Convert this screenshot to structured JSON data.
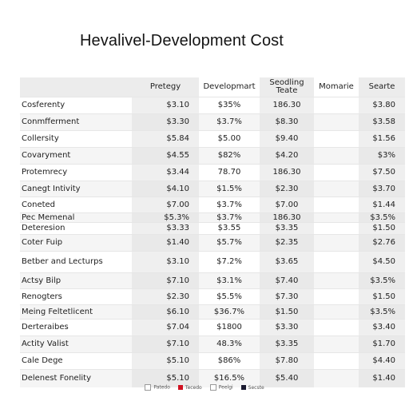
{
  "title": "Hevalivel-Development Cost",
  "table": {
    "headers": [
      "",
      "Pretegy",
      "Developmart",
      "Seodling Teate",
      "Momarie",
      "Searte"
    ],
    "rows": [
      {
        "label": "Cosferenty",
        "cells": [
          "$3.10",
          "$35%",
          "186.30",
          "",
          "$3.80"
        ]
      },
      {
        "label": "Conmfferment",
        "cells": [
          "$3.30",
          "$3.7%",
          "$8.30",
          "",
          "$3.58"
        ]
      },
      {
        "label": "Collersity",
        "cells": [
          "$5.84",
          "$5.00",
          "$9.40",
          "",
          "$1.56"
        ]
      },
      {
        "label": "Covaryment",
        "cells": [
          "$4.55",
          "$82%",
          "$4.20",
          "",
          "$3%"
        ]
      },
      {
        "label": "Protemrecy",
        "cells": [
          "$3.44",
          "78.70",
          "186.30",
          "",
          "$7.50"
        ]
      },
      {
        "label": "Canegt Intivity",
        "cells": [
          "$4.10",
          "$1.5%",
          "$2.30",
          "",
          "$3.70"
        ]
      },
      {
        "label": "Coneted",
        "cells": [
          "$7.00",
          "$3.7%",
          "$7.00",
          "",
          "$1.44"
        ]
      },
      {
        "label": "Pec Memenal",
        "cells": [
          "$5.3%",
          "$3.7%",
          "186.30",
          "",
          "$3.5%"
        ]
      },
      {
        "label": "Deteresion",
        "cells": [
          "$3.33",
          "$3.55",
          "$3.35",
          "",
          "$1.50"
        ]
      },
      {
        "label": "Coter Fuip",
        "cells": [
          "$1.40",
          "$5.7%",
          "$2.35",
          "",
          "$2.76"
        ]
      },
      {
        "label": "Betber and Lecturps",
        "cells": [
          "$3.10",
          "$7.2%",
          "$3.65",
          "",
          "$4.50"
        ]
      },
      {
        "label": "Actsy Bilp",
        "cells": [
          "$7.10",
          "$3.1%",
          "$7.40",
          "",
          "$3.5%"
        ]
      },
      {
        "label": "Renogters",
        "cells": [
          "$2.30",
          "$5.5%",
          "$7.30",
          "",
          "$1.50"
        ]
      },
      {
        "label": "Meing Feltetlicent",
        "cells": [
          "$6.10",
          "$36.7%",
          "$1.50",
          "",
          "$3.5%"
        ]
      },
      {
        "label": "Derteraibes",
        "cells": [
          "$7.04",
          "$1800",
          "$3.30",
          "",
          "$3.40"
        ]
      },
      {
        "label": "Actity Valist",
        "cells": [
          "$7.10",
          "48.3%",
          "$3.35",
          "",
          "$1.70"
        ]
      },
      {
        "label": "Cale Dege",
        "cells": [
          "$5.10",
          "$86%",
          "$7.80",
          "",
          "$4.40"
        ]
      },
      {
        "label": "Delenest Fonelity",
        "cells": [
          "$5.10",
          "$16.5%",
          "$5.40",
          "",
          "$1.40"
        ]
      }
    ]
  },
  "legend": {
    "items": [
      {
        "label": "Patedo",
        "color": "#ffffff"
      },
      {
        "label": "Tecedo",
        "color": "#d01020"
      },
      {
        "label": "Peelgi",
        "color": "#ffffff"
      },
      {
        "label": "Secste",
        "color": "#1a1a30"
      }
    ]
  }
}
